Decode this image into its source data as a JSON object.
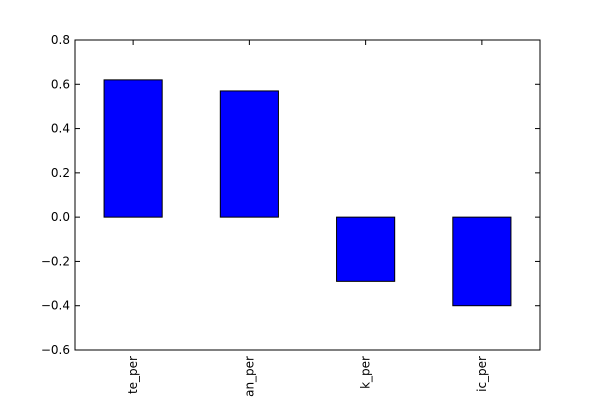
{
  "chart_data": {
    "type": "bar",
    "title": "",
    "xlabel": "",
    "ylabel": "",
    "categories": [
      "white_per",
      "asian_per",
      "black_per",
      "hispanic_per"
    ],
    "category_labels_visible": [
      "te_per",
      "an_per",
      "k_per",
      "ic_per"
    ],
    "values": [
      0.62,
      0.57,
      -0.29,
      -0.4
    ],
    "ylim": [
      -0.6,
      0.8
    ],
    "yticks": [
      -0.6,
      -0.4,
      -0.2,
      0.0,
      0.2,
      0.4,
      0.6,
      0.8
    ],
    "ytick_labels": [
      "−0.6",
      "−0.4",
      "−0.2",
      "0.0",
      "0.2",
      "0.4",
      "0.6",
      "0.8"
    ],
    "grid": false,
    "legend": "none",
    "colors": {
      "bar_fill": "#0000ff",
      "bar_edge": "#000000",
      "axis": "#000000",
      "background": "#ffffff"
    }
  }
}
